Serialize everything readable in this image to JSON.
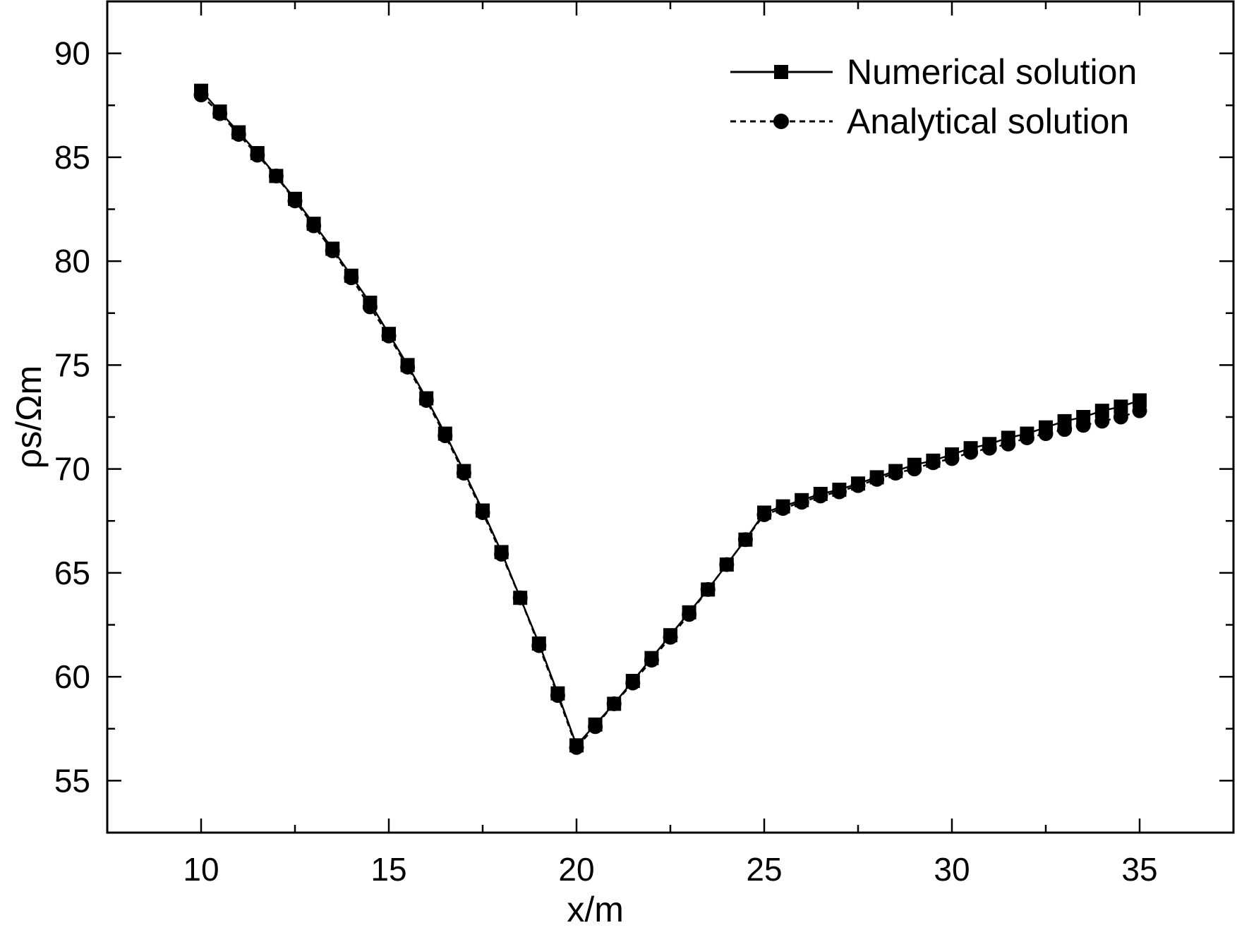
{
  "chart_data": {
    "type": "line",
    "xlabel": "x/m",
    "ylabel": "ρs/Ωm",
    "xlim": [
      7.5,
      37.5
    ],
    "ylim": [
      52.5,
      92.5
    ],
    "x_ticks": [
      10,
      15,
      20,
      25,
      30,
      35
    ],
    "y_ticks": [
      55,
      60,
      65,
      70,
      75,
      80,
      85,
      90
    ],
    "grid": false,
    "legend_position": "top-right",
    "x": [
      10,
      10.5,
      11,
      11.5,
      12,
      12.5,
      13,
      13.5,
      14,
      14.5,
      15,
      15.5,
      16,
      16.5,
      17,
      17.5,
      18,
      18.5,
      19,
      19.5,
      20,
      20.5,
      21,
      21.5,
      22,
      22.5,
      23,
      23.5,
      24,
      24.5,
      25,
      25.5,
      26,
      26.5,
      27,
      27.5,
      28,
      28.5,
      29,
      29.5,
      30,
      30.5,
      31,
      31.5,
      32,
      32.5,
      33,
      33.5,
      34,
      34.5,
      35
    ],
    "series": [
      {
        "name": "Numerical solution",
        "marker": "square",
        "line": "solid",
        "color": "#000000",
        "values": [
          88.2,
          87.2,
          86.2,
          85.2,
          84.1,
          83.0,
          81.8,
          80.6,
          79.3,
          78.0,
          76.5,
          75.0,
          73.4,
          71.7,
          69.9,
          68.0,
          66.0,
          63.8,
          61.6,
          59.2,
          56.7,
          57.7,
          58.7,
          59.8,
          60.9,
          62.0,
          63.1,
          64.2,
          65.4,
          66.6,
          67.9,
          68.2,
          68.5,
          68.8,
          69.0,
          69.3,
          69.6,
          69.9,
          70.2,
          70.4,
          70.7,
          71.0,
          71.2,
          71.5,
          71.7,
          72.0,
          72.3,
          72.5,
          72.8,
          73.0,
          73.3
        ]
      },
      {
        "name": "Analytical solution",
        "marker": "circle",
        "line": "dashed",
        "color": "#000000",
        "values": [
          88.0,
          87.1,
          86.1,
          85.1,
          84.1,
          82.9,
          81.7,
          80.5,
          79.2,
          77.8,
          76.4,
          74.9,
          73.3,
          71.6,
          69.8,
          67.9,
          65.9,
          63.8,
          61.5,
          59.1,
          56.6,
          57.6,
          58.7,
          59.7,
          60.8,
          61.9,
          63.0,
          64.2,
          65.4,
          66.6,
          67.8,
          68.1,
          68.4,
          68.7,
          68.9,
          69.2,
          69.5,
          69.8,
          70.0,
          70.3,
          70.5,
          70.8,
          71.0,
          71.2,
          71.5,
          71.7,
          71.9,
          72.1,
          72.3,
          72.5,
          72.8
        ]
      }
    ]
  }
}
